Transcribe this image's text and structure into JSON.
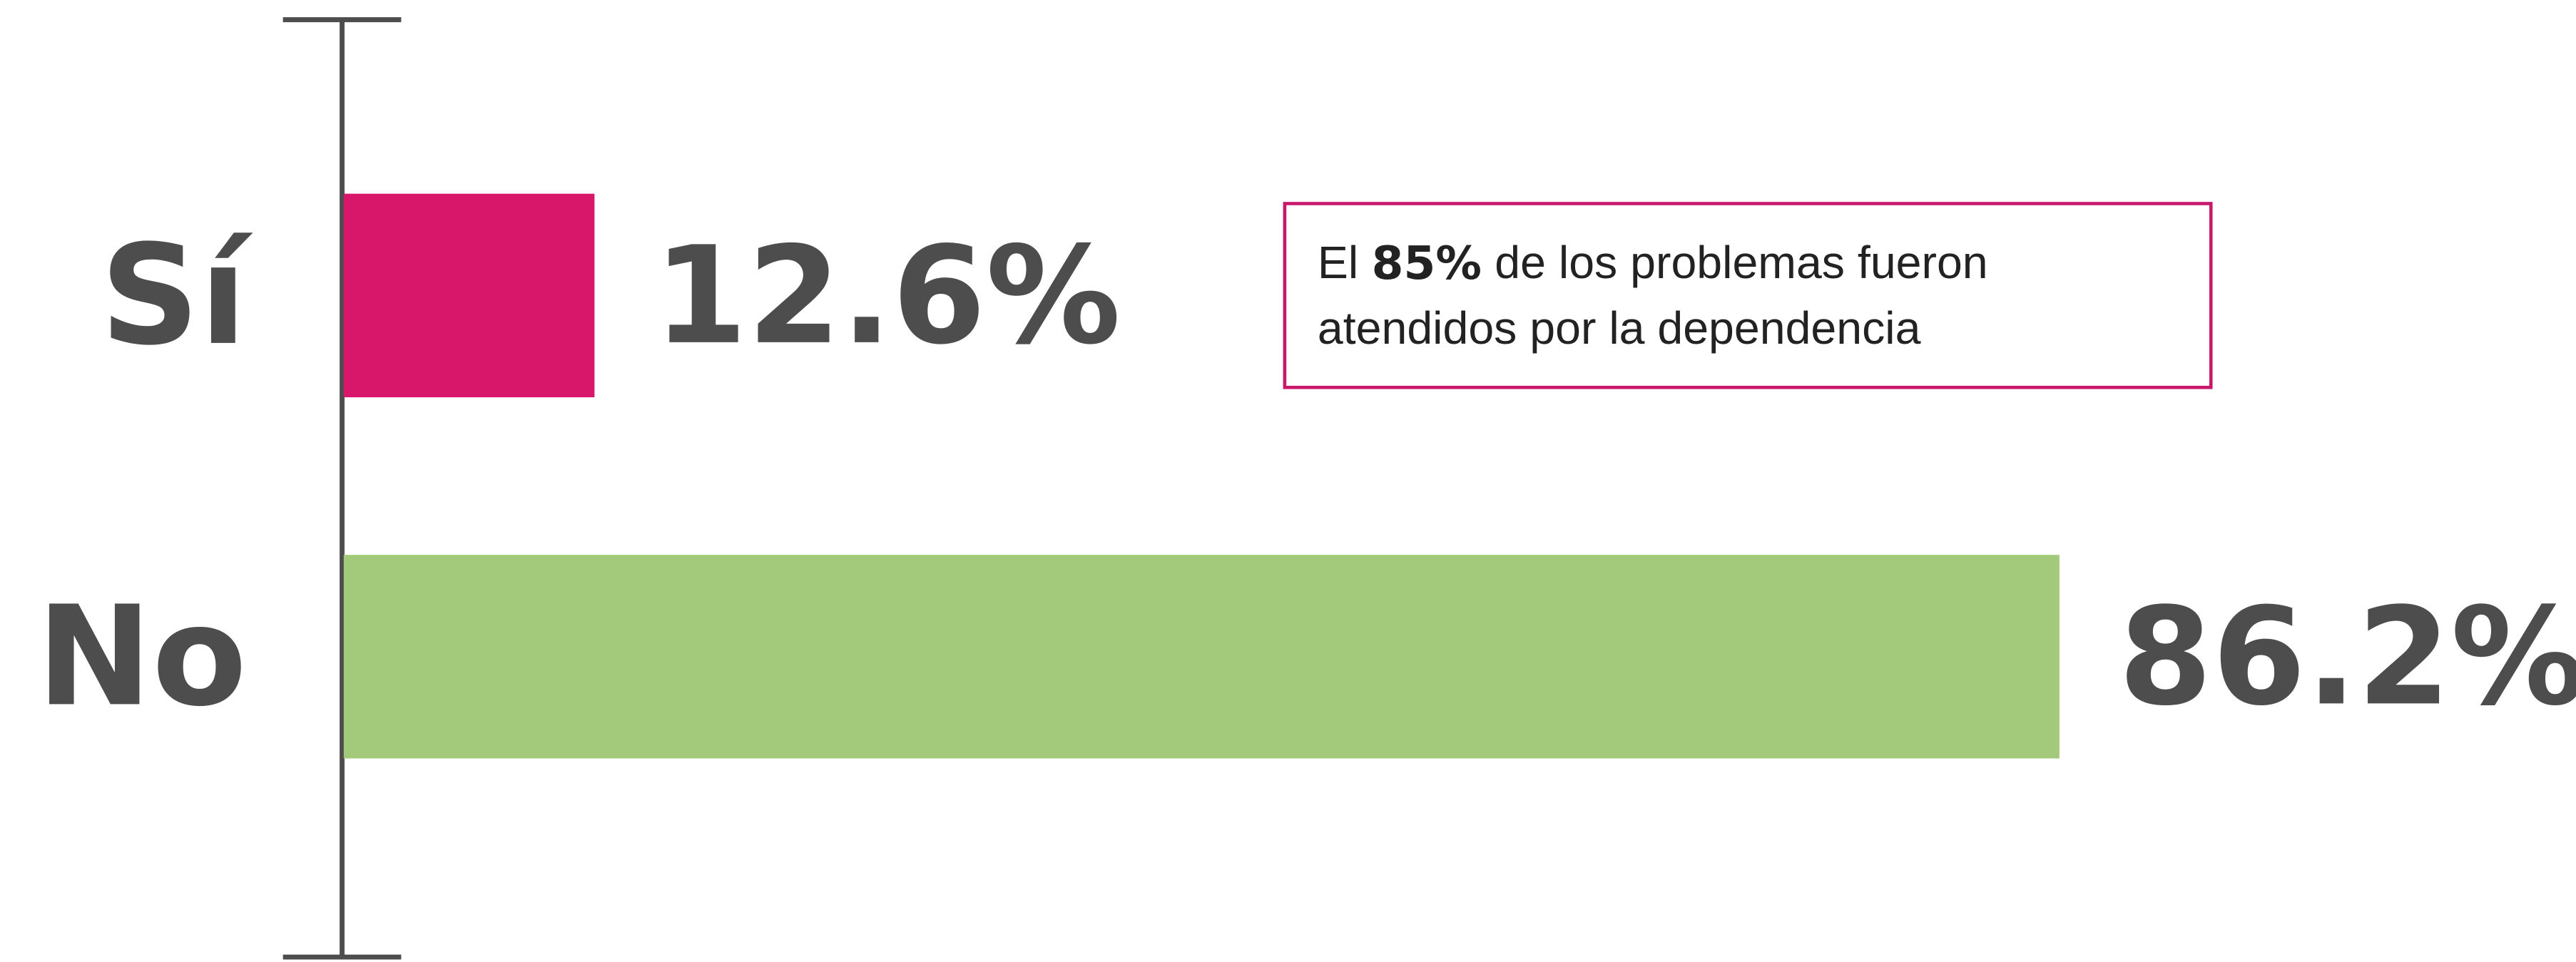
{
  "chart_data": {
    "type": "bar",
    "orientation": "horizontal",
    "categories": [
      "Sí",
      "No"
    ],
    "values": [
      12.6,
      86.2
    ],
    "value_labels": [
      "12.6%",
      "86.2%"
    ],
    "colors": [
      "#d8176b",
      "#a3c97a"
    ],
    "xlim": [
      0,
      100
    ],
    "annotation": {
      "before": "El",
      "bold": "85%",
      "after": "de los problemas fueron",
      "line2": "atendidos por la dependencia",
      "border_color": "#c8186a"
    }
  }
}
